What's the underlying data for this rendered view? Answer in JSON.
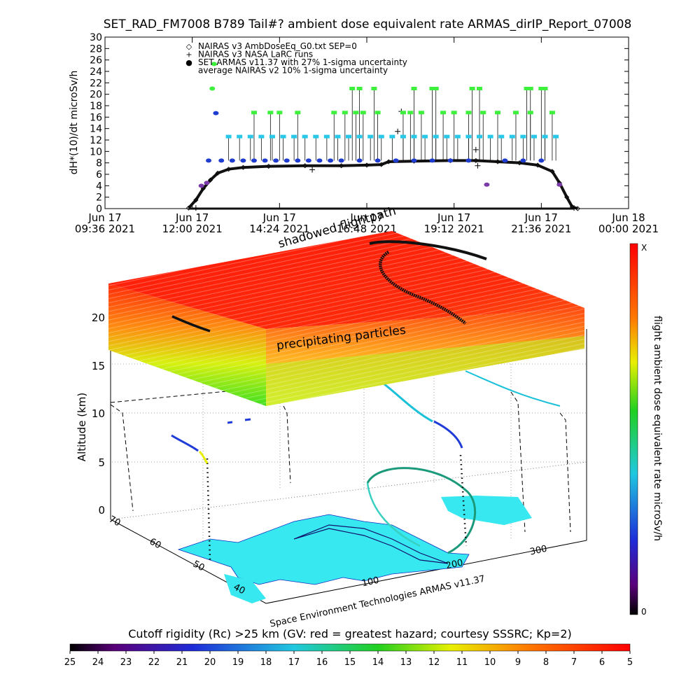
{
  "title": "SET_RAD_FM7008  B789 Tail#? ambient dose equivalent rate ARMAS_dirIP_Report_07008",
  "colors": {
    "nairas_v3": "#7a3aa8",
    "armas": "#1e3cd0",
    "set_green": "#3cf03c",
    "set_cyan": "#28c8e8",
    "flight_black": "#111111"
  },
  "chart_data": [
    {
      "type": "scatter",
      "ylabel": "dH*(10)/dt microSv/h",
      "ylim": [
        0,
        30
      ],
      "yticks": [
        0,
        2,
        4,
        6,
        8,
        10,
        12,
        14,
        16,
        18,
        20,
        22,
        24,
        26,
        28,
        30
      ],
      "xlim": [
        0,
        14.4
      ],
      "xticks": [
        {
          "t": 0.0,
          "l1": "Jun 17",
          "l2": "09:36 2021"
        },
        {
          "t": 2.4,
          "l1": "Jun 17",
          "l2": "12:00 2021"
        },
        {
          "t": 4.8,
          "l1": "Jun 17",
          "l2": "14:24 2021"
        },
        {
          "t": 7.2,
          "l1": "Jun 17",
          "l2": "16:48 2021"
        },
        {
          "t": 9.6,
          "l1": "Jun 17",
          "l2": "19:12 2021"
        },
        {
          "t": 12.0,
          "l1": "Jun 17",
          "l2": "21:36 2021"
        },
        {
          "t": 14.4,
          "l1": "Jun 18",
          "l2": "00:00 2021"
        }
      ],
      "legend": [
        {
          "symbol": "◇",
          "label": "NAIRAS v3 AmbDoseEq_G0.txt SEP=0"
        },
        {
          "symbol": "+",
          "label": "NAIRAS v3 NASA LaRC runs"
        },
        {
          "symbol": "●",
          "label": "SET ARMAS v11.37 with 27% 1-sigma uncertainty"
        },
        {
          "symbol": "",
          "label": "average NAIRAS v2 10% 1-sigma uncertainty"
        }
      ],
      "series": [
        {
          "name": "NAIRAS v3 AmbDoseEq_G0.txt SEP=0",
          "points": [
            [
              2.3,
              0.1
            ],
            [
              2.5,
              1.5
            ],
            [
              2.7,
              3.5
            ],
            [
              2.9,
              5.0
            ],
            [
              3.1,
              6.2
            ],
            [
              3.4,
              6.9
            ],
            [
              3.8,
              7.2
            ],
            [
              4.5,
              7.4
            ],
            [
              5.5,
              7.5
            ],
            [
              6.5,
              7.5
            ],
            [
              7.2,
              7.6
            ],
            [
              7.6,
              7.7
            ],
            [
              7.8,
              8.2
            ],
            [
              8.5,
              8.3
            ],
            [
              9.5,
              8.4
            ],
            [
              10.2,
              8.4
            ],
            [
              10.8,
              8.2
            ],
            [
              11.4,
              8.0
            ],
            [
              11.9,
              7.6
            ],
            [
              12.3,
              6.5
            ],
            [
              12.5,
              4.5
            ],
            [
              12.7,
              2.0
            ],
            [
              12.85,
              0.3
            ],
            [
              13.0,
              0.0
            ]
          ]
        },
        {
          "name": "NAIRAS v3 NASA LaRC runs",
          "points": [
            [
              2.5,
              0.1
            ],
            [
              5.7,
              6.8
            ],
            [
              8.05,
              13.5
            ],
            [
              8.15,
              17.0
            ],
            [
              10.2,
              10.3
            ],
            [
              10.25,
              7.5
            ],
            [
              12.9,
              0.1
            ]
          ]
        },
        {
          "name": "SET ARMAS v11.37 with 27% 1-sigma uncertainty",
          "points": [
            [
              2.65,
              4.0
            ],
            [
              2.8,
              4.5
            ],
            [
              2.85,
              8.4
            ],
            [
              2.95,
              21.0
            ],
            [
              3.0,
              25.3
            ],
            [
              3.05,
              16.7
            ],
            [
              3.2,
              8.4
            ],
            [
              3.5,
              8.4
            ],
            [
              3.8,
              8.4
            ],
            [
              4.1,
              8.4
            ],
            [
              4.4,
              8.4
            ],
            [
              4.7,
              8.4
            ],
            [
              5.0,
              8.4
            ],
            [
              5.3,
              8.4
            ],
            [
              5.6,
              8.4
            ],
            [
              5.9,
              8.4
            ],
            [
              6.2,
              8.4
            ],
            [
              6.5,
              8.4
            ],
            [
              7.0,
              8.4
            ],
            [
              7.5,
              8.4
            ],
            [
              8.0,
              8.4
            ],
            [
              8.5,
              8.4
            ],
            [
              9.0,
              8.4
            ],
            [
              9.5,
              8.4
            ],
            [
              10.0,
              8.4
            ],
            [
              10.5,
              4.2
            ],
            [
              11.0,
              8.4
            ],
            [
              11.5,
              8.4
            ],
            [
              12.0,
              8.4
            ],
            [
              12.5,
              4.2
            ]
          ]
        },
        {
          "name": "SET ARMAS level A",
          "points": [
            [
              3.4,
              12.6
            ],
            [
              3.7,
              12.6
            ],
            [
              4.0,
              12.6
            ],
            [
              4.3,
              12.6
            ],
            [
              4.6,
              12.6
            ],
            [
              4.9,
              12.6
            ],
            [
              5.2,
              12.6
            ],
            [
              5.5,
              12.6
            ],
            [
              5.8,
              12.6
            ],
            [
              6.1,
              12.6
            ],
            [
              6.4,
              12.6
            ],
            [
              6.7,
              12.6
            ],
            [
              7.0,
              12.6
            ],
            [
              7.3,
              12.6
            ],
            [
              7.6,
              12.6
            ],
            [
              7.9,
              12.6
            ],
            [
              8.2,
              12.6
            ],
            [
              8.5,
              12.6
            ],
            [
              8.8,
              12.6
            ],
            [
              9.1,
              12.6
            ],
            [
              9.4,
              12.6
            ],
            [
              9.7,
              12.6
            ],
            [
              10.0,
              12.6
            ],
            [
              10.3,
              12.6
            ],
            [
              10.6,
              12.6
            ],
            [
              10.9,
              12.6
            ],
            [
              11.2,
              12.6
            ],
            [
              11.5,
              12.6
            ],
            [
              11.8,
              12.6
            ],
            [
              12.1,
              12.6
            ],
            [
              12.4,
              12.6
            ]
          ]
        },
        {
          "name": "SET ARMAS level B",
          "points": [
            [
              4.1,
              16.8
            ],
            [
              4.55,
              16.8
            ],
            [
              4.8,
              16.8
            ],
            [
              5.3,
              16.8
            ],
            [
              6.3,
              16.8
            ],
            [
              6.6,
              16.8
            ],
            [
              6.9,
              16.8
            ],
            [
              7.1,
              16.8
            ],
            [
              7.5,
              16.8
            ],
            [
              8.2,
              16.8
            ],
            [
              8.4,
              16.8
            ],
            [
              8.7,
              16.8
            ],
            [
              9.3,
              16.8
            ],
            [
              9.6,
              16.8
            ],
            [
              10.0,
              16.8
            ],
            [
              10.4,
              16.8
            ],
            [
              10.8,
              16.8
            ],
            [
              11.3,
              16.8
            ],
            [
              11.7,
              16.8
            ],
            [
              12.3,
              16.8
            ]
          ]
        },
        {
          "name": "SET ARMAS level C",
          "points": [
            [
              6.8,
              21.0
            ],
            [
              7.0,
              21.0
            ],
            [
              7.4,
              21.0
            ],
            [
              8.5,
              21.0
            ],
            [
              9.0,
              21.0
            ],
            [
              9.1,
              21.0
            ],
            [
              10.1,
              21.0
            ],
            [
              10.3,
              21.0
            ],
            [
              11.6,
              21.0
            ],
            [
              11.7,
              21.0
            ],
            [
              12.0,
              21.0
            ],
            [
              12.1,
              21.0
            ]
          ]
        }
      ]
    },
    {
      "type": "heatmap",
      "zlabel": "Altitude (km)",
      "zticks": [
        0,
        5,
        10,
        15,
        20
      ],
      "latticks": [
        70,
        60,
        50,
        40
      ],
      "lonticks": [
        100,
        200,
        300
      ],
      "colorbar_label": "flight ambient dose equivalent rate microSv/h",
      "colorbar_top": "X",
      "colorbar_bottom": "0",
      "annotations": [
        "shadowed flightpath",
        "precipitating particles",
        "Space Environment Technologies ARMAS v11.37"
      ]
    },
    {
      "type": "heatmap",
      "title": "Cutoff rigidity (Rc) >25 km (GV: red = greatest hazard; courtesy SSSRC; Kp=2)",
      "ticks": [
        25,
        24,
        23,
        22,
        21,
        20,
        19,
        18,
        17,
        16,
        15,
        14,
        13,
        12,
        11,
        10,
        9,
        8,
        7,
        6,
        5
      ]
    }
  ]
}
